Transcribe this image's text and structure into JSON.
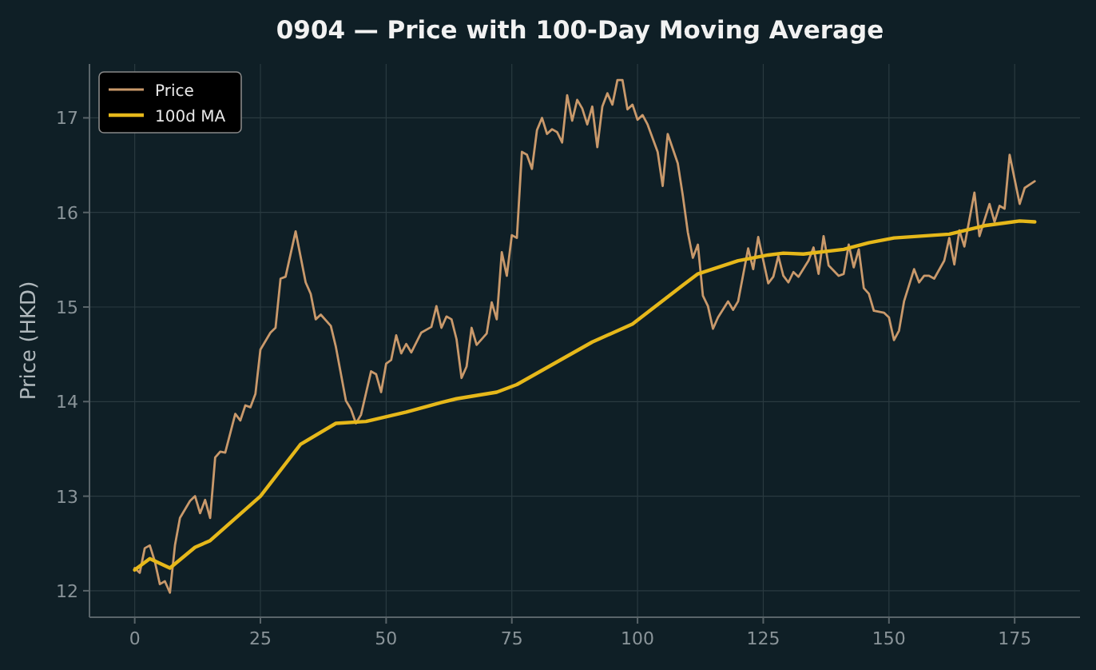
{
  "chart_data": {
    "type": "line",
    "title": "0904 — Price with 100-Day Moving Average",
    "ylabel": "Price (HKD)",
    "xlim": [
      -9,
      188
    ],
    "ylim": [
      11.72,
      17.57
    ],
    "xticks": [
      0,
      25,
      50,
      75,
      100,
      125,
      150,
      175
    ],
    "yticks": [
      12,
      13,
      14,
      15,
      16,
      17
    ],
    "grid": true,
    "legend": "top left",
    "marker": "none",
    "line_style": "solid",
    "series": [
      {
        "name": "Price",
        "color": "#c9996b",
        "x": [
          0,
          1,
          2,
          3,
          4,
          5,
          6,
          7,
          8,
          9,
          11,
          12,
          13,
          14,
          15,
          16,
          17,
          18,
          20,
          21,
          22,
          23,
          24,
          25,
          27,
          28,
          29,
          30,
          32,
          34,
          35,
          36,
          37,
          39,
          40,
          42,
          43,
          44,
          45,
          47,
          48,
          49,
          50,
          51,
          52,
          53,
          54,
          55,
          57,
          59,
          60,
          61,
          62,
          63,
          64,
          65,
          66,
          67,
          68,
          70,
          71,
          72,
          73,
          74,
          75,
          76,
          77,
          78,
          79,
          80,
          81,
          82,
          83,
          84,
          85,
          86,
          87,
          88,
          89,
          90,
          91,
          92,
          93,
          94,
          95,
          96,
          97,
          98,
          99,
          100,
          101,
          102,
          104,
          105,
          106,
          108,
          109,
          110,
          111,
          112,
          113,
          114,
          115,
          116,
          118,
          119,
          120,
          122,
          123,
          124,
          126,
          127,
          128,
          129,
          130,
          131,
          132,
          134,
          135,
          136,
          137,
          138,
          140,
          141,
          142,
          143,
          144,
          145,
          146,
          147,
          149,
          150,
          151,
          152,
          153,
          155,
          156,
          157,
          158,
          159,
          161,
          162,
          163,
          164,
          165,
          167,
          168,
          170,
          171,
          172,
          173,
          174,
          176,
          177,
          179
        ],
        "values": [
          12.24,
          12.19,
          12.45,
          12.48,
          12.31,
          12.07,
          12.1,
          11.98,
          12.48,
          12.77,
          12.95,
          13.0,
          12.82,
          12.96,
          12.77,
          13.41,
          13.47,
          13.46,
          13.87,
          13.8,
          13.96,
          13.94,
          14.08,
          14.55,
          14.73,
          14.78,
          15.3,
          15.32,
          15.8,
          15.26,
          15.14,
          14.87,
          14.92,
          14.8,
          14.58,
          14.01,
          13.92,
          13.77,
          13.86,
          14.32,
          14.29,
          14.1,
          14.4,
          14.44,
          14.7,
          14.51,
          14.61,
          14.52,
          14.73,
          14.79,
          15.01,
          14.78,
          14.9,
          14.87,
          14.66,
          14.25,
          14.37,
          14.78,
          14.6,
          14.72,
          15.05,
          14.87,
          15.58,
          15.33,
          15.76,
          15.73,
          16.64,
          16.61,
          16.46,
          16.87,
          17.0,
          16.83,
          16.88,
          16.85,
          16.74,
          17.24,
          16.97,
          17.19,
          17.1,
          16.93,
          17.12,
          16.69,
          17.12,
          17.26,
          17.14,
          17.4,
          17.4,
          17.09,
          17.14,
          16.98,
          17.03,
          16.93,
          16.64,
          16.28,
          16.83,
          16.52,
          16.18,
          15.79,
          15.52,
          15.66,
          15.12,
          15.01,
          14.77,
          14.89,
          15.06,
          14.97,
          15.06,
          15.62,
          15.4,
          15.74,
          15.25,
          15.32,
          15.54,
          15.33,
          15.26,
          15.37,
          15.32,
          15.49,
          15.63,
          15.35,
          15.75,
          15.44,
          15.33,
          15.35,
          15.66,
          15.42,
          15.61,
          15.2,
          15.14,
          14.96,
          14.94,
          14.89,
          14.65,
          14.75,
          15.06,
          15.4,
          15.26,
          15.33,
          15.33,
          15.3,
          15.49,
          15.73,
          15.45,
          15.81,
          15.64,
          16.21,
          15.75,
          16.09,
          15.9,
          16.07,
          16.04,
          16.61,
          16.09,
          16.26,
          16.33
        ]
      },
      {
        "name": "100d MA",
        "color": "#e6b81a",
        "x": [
          0,
          3,
          7,
          12,
          15,
          25,
          33,
          40,
          46,
          54,
          61,
          64,
          72,
          76,
          91,
          99,
          109,
          112,
          120,
          126,
          129,
          133,
          141,
          146,
          151,
          162,
          169,
          176,
          179
        ],
        "values": [
          12.22,
          12.34,
          12.24,
          12.46,
          12.53,
          13.0,
          13.55,
          13.77,
          13.79,
          13.89,
          13.99,
          14.03,
          14.1,
          14.18,
          14.63,
          14.82,
          15.23,
          15.35,
          15.49,
          15.55,
          15.57,
          15.56,
          15.61,
          15.68,
          15.73,
          15.77,
          15.86,
          15.91,
          15.9
        ]
      }
    ]
  }
}
